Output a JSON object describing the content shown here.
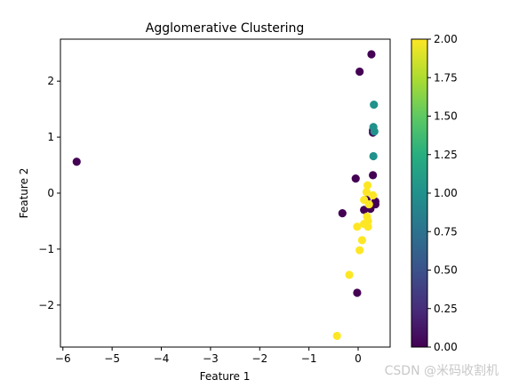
{
  "chart_data": {
    "type": "scatter",
    "title": "Agglomerative Clustering",
    "xlabel": "Feature 1",
    "ylabel": "Feature 2",
    "xlim": [
      -6.05,
      0.65
    ],
    "ylim": [
      -2.75,
      2.75
    ],
    "xticks": [
      -6,
      -5,
      -4,
      -3,
      -2,
      -1,
      0
    ],
    "yticks": [
      -2,
      -1,
      0,
      1,
      2
    ],
    "xtick_labels": [
      "−6",
      "−5",
      "−4",
      "−3",
      "−2",
      "−1",
      "0"
    ],
    "ytick_labels": [
      "−2",
      "−1",
      "0",
      "1",
      "2"
    ],
    "grid": false,
    "colormap": "viridis",
    "colorbar": {
      "range": [
        0.0,
        2.0
      ],
      "ticks": [
        0.0,
        0.25,
        0.5,
        0.75,
        1.0,
        1.25,
        1.5,
        1.75,
        2.0
      ],
      "tick_labels": [
        "0.00",
        "0.25",
        "0.50",
        "0.75",
        "1.00",
        "1.25",
        "1.50",
        "1.75",
        "2.00"
      ]
    },
    "points": [
      {
        "x": 0.27,
        "y": 2.48,
        "label": 0
      },
      {
        "x": 0.03,
        "y": 2.17,
        "label": 0
      },
      {
        "x": -5.72,
        "y": 0.56,
        "label": 0
      },
      {
        "x": 0.3,
        "y": 1.12,
        "label": 0
      },
      {
        "x": 0.3,
        "y": 1.08,
        "label": 0
      },
      {
        "x": 0.3,
        "y": 0.32,
        "label": 0
      },
      {
        "x": -0.05,
        "y": 0.26,
        "label": 0
      },
      {
        "x": 0.17,
        "y": -0.12,
        "label": 0
      },
      {
        "x": 0.35,
        "y": -0.15,
        "label": 0
      },
      {
        "x": 0.35,
        "y": -0.2,
        "label": 0
      },
      {
        "x": 0.25,
        "y": -0.28,
        "label": 0
      },
      {
        "x": 0.12,
        "y": -0.3,
        "label": 0
      },
      {
        "x": -0.32,
        "y": -0.36,
        "label": 0
      },
      {
        "x": -0.02,
        "y": -1.78,
        "label": 0
      },
      {
        "x": 0.32,
        "y": 1.58,
        "label": 1
      },
      {
        "x": 0.31,
        "y": 1.18,
        "label": 1
      },
      {
        "x": 0.33,
        "y": 1.1,
        "label": 1
      },
      {
        "x": 0.31,
        "y": 0.66,
        "label": 1
      },
      {
        "x": 0.19,
        "y": 0.14,
        "label": 2
      },
      {
        "x": 0.17,
        "y": 0.02,
        "label": 2
      },
      {
        "x": 0.3,
        "y": -0.04,
        "label": 2
      },
      {
        "x": 0.12,
        "y": -0.12,
        "label": 2
      },
      {
        "x": 0.22,
        "y": -0.2,
        "label": 2
      },
      {
        "x": 0.18,
        "y": -0.42,
        "label": 2
      },
      {
        "x": 0.2,
        "y": -0.5,
        "label": 2
      },
      {
        "x": 0.12,
        "y": -0.55,
        "label": 2
      },
      {
        "x": -0.02,
        "y": -0.6,
        "label": 2
      },
      {
        "x": 0.2,
        "y": -0.6,
        "label": 2
      },
      {
        "x": 0.08,
        "y": -0.84,
        "label": 2
      },
      {
        "x": 0.03,
        "y": -1.02,
        "label": 2
      },
      {
        "x": -0.18,
        "y": -1.46,
        "label": 2
      },
      {
        "x": -0.43,
        "y": -2.55,
        "label": 2
      }
    ]
  },
  "watermark": "CSDN @米码收割机"
}
